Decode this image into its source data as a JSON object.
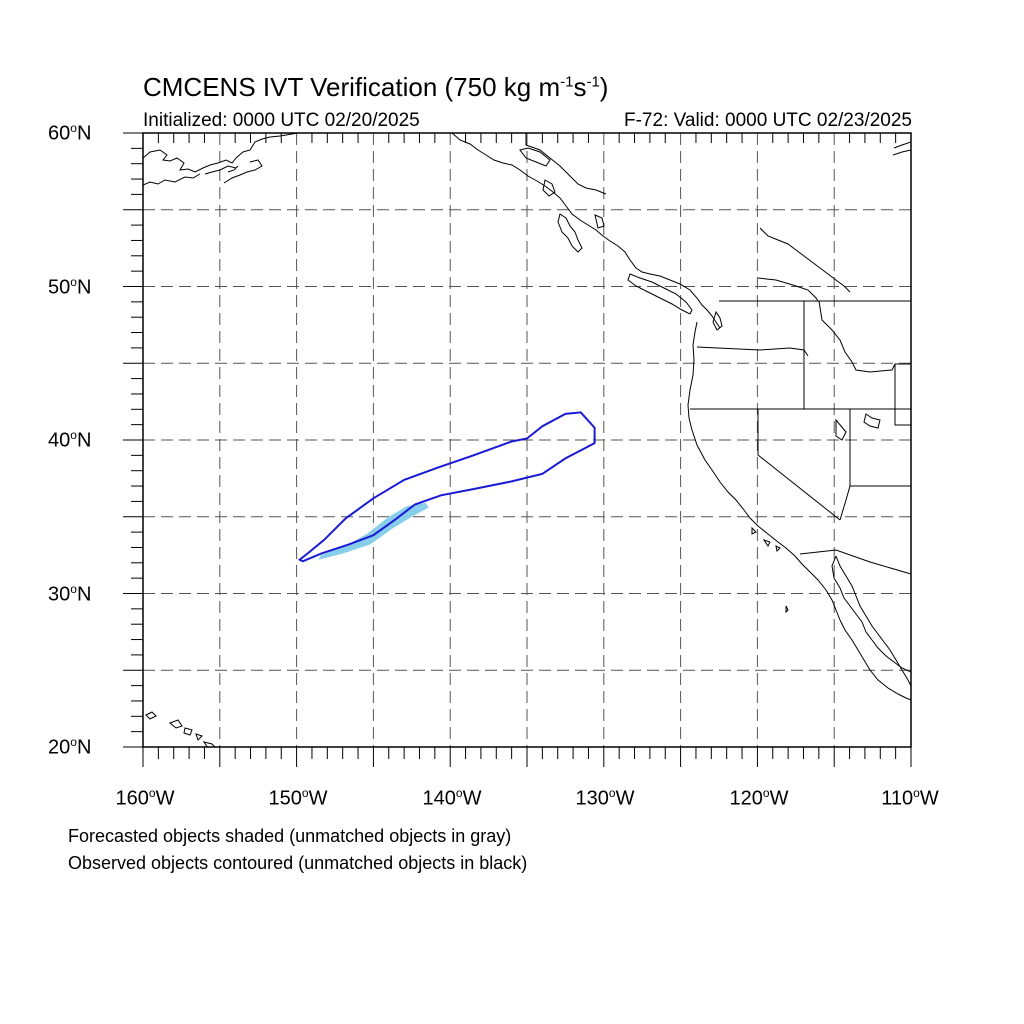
{
  "title": {
    "prefix": "CMCENS IVT Verification (750 kg m",
    "exp1": "-1",
    "mid": "s",
    "exp2": "-1",
    "suffix": ")"
  },
  "subtitle_left": "Initialized: 0000 UTC 02/20/2025",
  "subtitle_right": "F-72: Valid: 0000 UTC 02/23/2025",
  "lat_labels": [
    {
      "deg": "60",
      "suffix": "N"
    },
    {
      "deg": "50",
      "suffix": "N"
    },
    {
      "deg": "40",
      "suffix": "N"
    },
    {
      "deg": "30",
      "suffix": "N"
    },
    {
      "deg": "20",
      "suffix": "N"
    }
  ],
  "lon_labels": [
    {
      "deg": "160",
      "suffix": "W"
    },
    {
      "deg": "150",
      "suffix": "W"
    },
    {
      "deg": "140",
      "suffix": "W"
    },
    {
      "deg": "130",
      "suffix": "W"
    },
    {
      "deg": "120",
      "suffix": "W"
    },
    {
      "deg": "110",
      "suffix": "W"
    }
  ],
  "caption_forecast": "Forecasted objects shaded (unmatched objects in gray)",
  "caption_observed": "Observed objects contoured (unmatched objects in black)",
  "colors": {
    "forecast_shading": "#87ceeb",
    "observed_contour": "#1a1ad6",
    "coastline": "#000000",
    "grid": "#555555"
  },
  "map_extent": {
    "lon_min": -160,
    "lon_max": -110,
    "lat_min": 20,
    "lat_max": 60
  },
  "grid_spacing_deg": 5,
  "forecast_object": {
    "label": "forecast IVT object",
    "outline_lonlat": [
      [
        -148.6,
        32.2
      ],
      [
        -147.0,
        32.6
      ],
      [
        -145.2,
        33.2
      ],
      [
        -143.8,
        34.2
      ],
      [
        -142.5,
        35.0
      ],
      [
        -141.4,
        35.6
      ],
      [
        -141.6,
        35.9
      ],
      [
        -142.8,
        35.7
      ],
      [
        -144.0,
        35.0
      ],
      [
        -145.4,
        33.9
      ],
      [
        -146.8,
        33.1
      ],
      [
        -148.4,
        32.5
      ]
    ]
  },
  "observed_object": {
    "label": "observed IVT object",
    "outline_lonlat": [
      [
        -149.6,
        32.1
      ],
      [
        -148.4,
        32.6
      ],
      [
        -146.6,
        33.2
      ],
      [
        -145.0,
        33.8
      ],
      [
        -143.6,
        34.8
      ],
      [
        -142.3,
        35.8
      ],
      [
        -140.6,
        36.4
      ],
      [
        -138.5,
        36.8
      ],
      [
        -136.0,
        37.3
      ],
      [
        -134.0,
        37.8
      ],
      [
        -132.5,
        38.8
      ],
      [
        -130.6,
        39.8
      ],
      [
        -130.6,
        40.8
      ],
      [
        -131.5,
        41.8
      ],
      [
        -132.5,
        41.7
      ],
      [
        -134.0,
        40.9
      ],
      [
        -135.0,
        40.1
      ],
      [
        -136.0,
        39.9
      ],
      [
        -138.5,
        39.0
      ],
      [
        -140.8,
        38.2
      ],
      [
        -143.0,
        37.4
      ],
      [
        -145.0,
        36.2
      ],
      [
        -146.8,
        34.9
      ],
      [
        -148.2,
        33.5
      ],
      [
        -149.3,
        32.6
      ],
      [
        -149.8,
        32.2
      ]
    ]
  }
}
